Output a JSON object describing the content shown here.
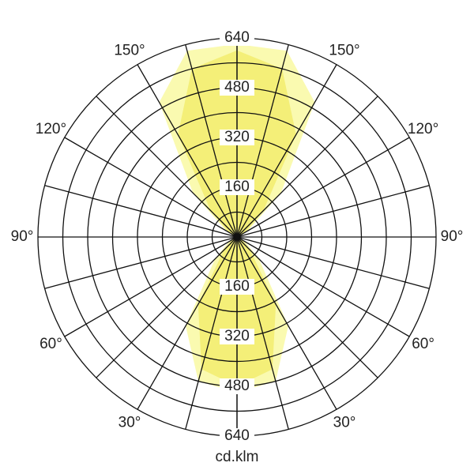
{
  "chart_data": {
    "type": "polar",
    "r_label": "cd.klm",
    "x": [
      0,
      15,
      30,
      45,
      60,
      75,
      90,
      105,
      120,
      135,
      150,
      165,
      180
    ],
    "series": [
      {
        "color": "#fafab0",
        "values": [
          500,
          480,
          330,
          100,
          30,
          10,
          5,
          10,
          40,
          200,
          500,
          620,
          620
        ]
      },
      {
        "color": "#f4ef78",
        "values": [
          480,
          440,
          250,
          60,
          20,
          10,
          5,
          10,
          30,
          120,
          380,
          560,
          600
        ]
      }
    ],
    "rlim": [
      0,
      640
    ],
    "rticks": [
      160,
      320,
      480,
      640
    ],
    "rgrid": [
      80,
      160,
      240,
      320,
      400,
      480,
      560,
      640
    ],
    "xticks": [
      {
        "value": 30,
        "label": "30°"
      },
      {
        "value": 60,
        "label": "60°"
      },
      {
        "value": 90,
        "label": "90°"
      },
      {
        "value": 120,
        "label": "120°"
      },
      {
        "value": 150,
        "label": "150°"
      }
    ]
  }
}
